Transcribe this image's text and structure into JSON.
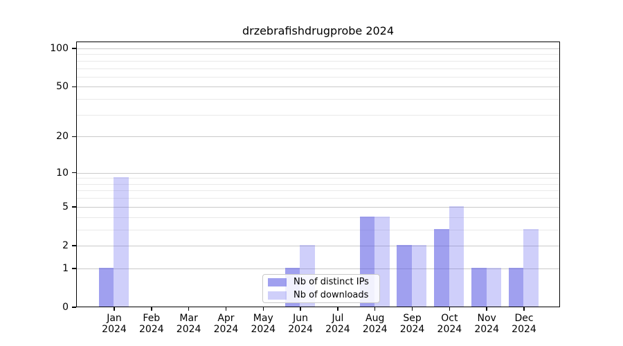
{
  "title": "drzebrafishdrugprobe 2024",
  "colors": {
    "ips_bar": "rgba(92,92,228,0.58)",
    "downloads_bar": "rgba(105,105,238,0.32)",
    "grid_major": "#c9c9c9",
    "grid_minor": "#e9e9e9",
    "axis": "#000000"
  },
  "legend": {
    "items": [
      {
        "label": "Nb of distinct IPs",
        "series": "ips"
      },
      {
        "label": "Nb of downloads",
        "series": "downloads"
      }
    ]
  },
  "chart_data": {
    "type": "bar",
    "title": "drzebrafishdrugprobe 2024",
    "xlabel": "",
    "ylabel": "",
    "categories": [
      "Jan 2024",
      "Feb 2024",
      "Mar 2024",
      "Apr 2024",
      "May 2024",
      "Jun 2024",
      "Jul 2024",
      "Aug 2024",
      "Sep 2024",
      "Oct 2024",
      "Nov 2024",
      "Dec 2024"
    ],
    "series": [
      {
        "name": "Nb of distinct IPs",
        "values": [
          1,
          0,
          0,
          0,
          0,
          1,
          0,
          4,
          2,
          3,
          1,
          1
        ]
      },
      {
        "name": "Nb of downloads",
        "values": [
          9,
          0,
          0,
          0,
          0,
          2,
          0,
          4,
          2,
          5,
          1,
          3
        ]
      }
    ],
    "yscale": "log1p",
    "ylim": [
      0,
      113.3
    ],
    "yticks": [
      0,
      1,
      2,
      5,
      10,
      20,
      50,
      100
    ],
    "minor_gridlines": [
      3,
      4,
      6,
      7,
      8,
      9,
      30,
      40,
      60,
      70,
      80,
      90
    ],
    "grid": true,
    "legend_position": "lower center"
  }
}
